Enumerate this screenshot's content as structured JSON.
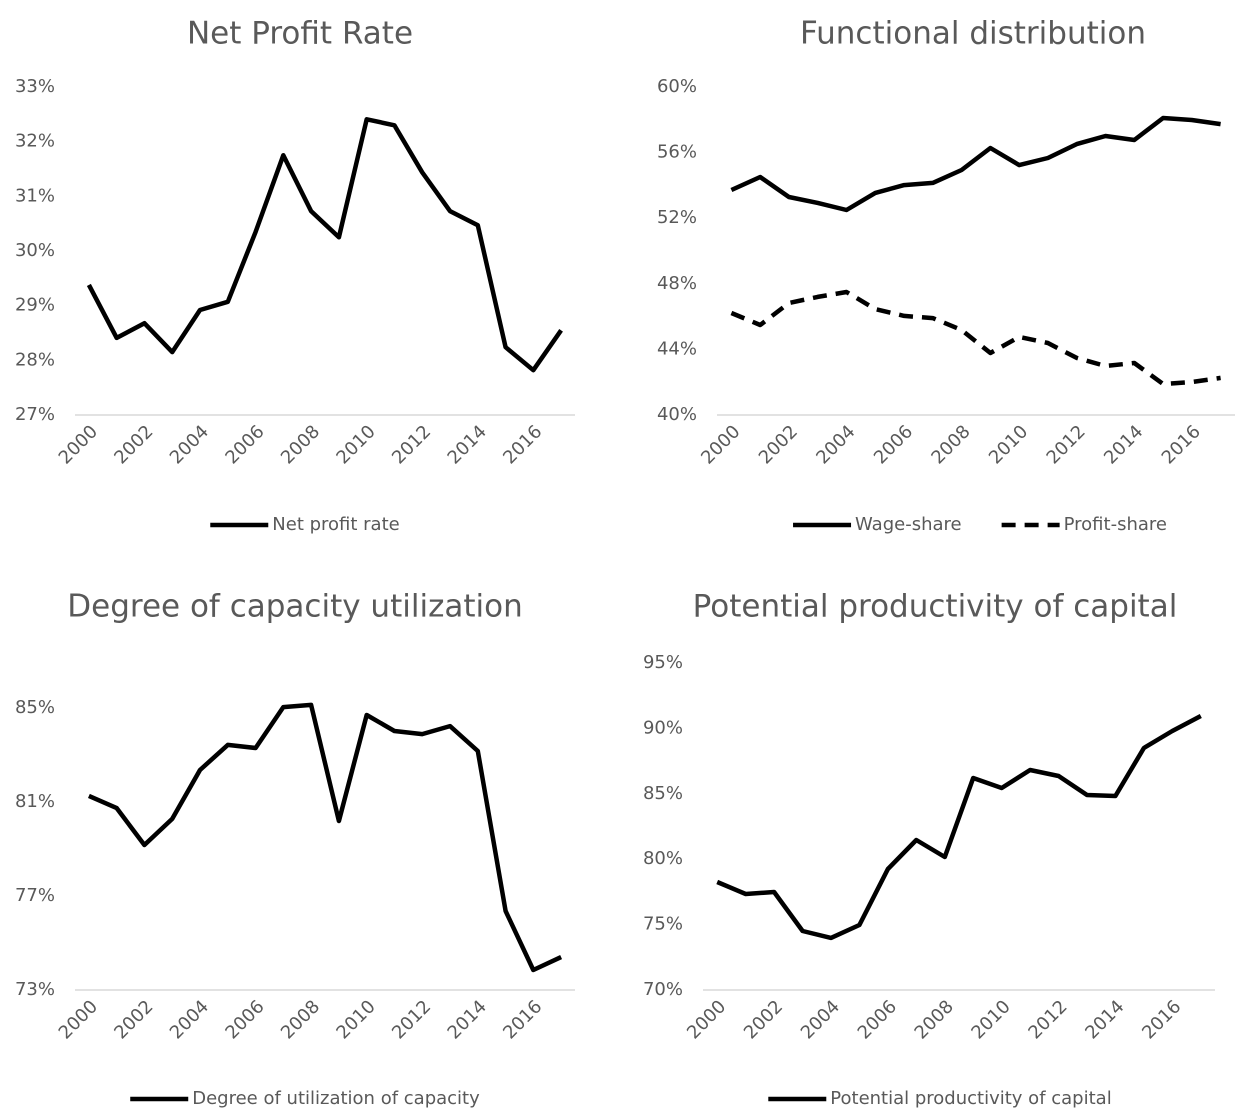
{
  "chart_data": [
    {
      "type": "line",
      "title": "Net Profit Rate",
      "categories": [
        "2000",
        null,
        "2002",
        null,
        "2004",
        null,
        "2006",
        null,
        "2008",
        null,
        "2010",
        null,
        "2012",
        null,
        "2014",
        null,
        "2016",
        null
      ],
      "series": [
        {
          "name": "Net profit rate",
          "color": "#000000",
          "line_style": "solid",
          "values": [
            29.38,
            28.41,
            28.68,
            28.15,
            28.92,
            29.07,
            30.35,
            31.75,
            30.73,
            30.25,
            32.41,
            32.3,
            31.44,
            30.73,
            30.47,
            28.24,
            27.82,
            28.55
          ]
        }
      ],
      "ylim": [
        27,
        33
      ],
      "yticks": [
        {
          "value": 27,
          "label": "27%"
        },
        {
          "value": 28,
          "label": "28%"
        },
        {
          "value": 29,
          "label": "29%"
        },
        {
          "value": 30,
          "label": "30%"
        },
        {
          "value": 31,
          "label": "31%"
        },
        {
          "value": 32,
          "label": "32%"
        },
        {
          "value": 33,
          "label": "33%"
        }
      ],
      "grid": false,
      "legend": "bottom"
    },
    {
      "type": "line",
      "title": "Functional distribution",
      "categories": [
        "2000",
        null,
        "2002",
        null,
        "2004",
        null,
        "2006",
        null,
        "2008",
        null,
        "2010",
        null,
        "2012",
        null,
        "2014",
        null,
        "2016",
        null
      ],
      "series": [
        {
          "name": "Wage-share",
          "color": "#000000",
          "line_style": "solid",
          "values": [
            53.72,
            54.51,
            53.29,
            52.93,
            52.5,
            53.54,
            54.02,
            54.15,
            54.94,
            56.28,
            55.24,
            55.67,
            56.52,
            57.01,
            56.77,
            58.11,
            57.99,
            57.74
          ]
        },
        {
          "name": "Profit-share",
          "color": "#000000",
          "line_style": "dashed",
          "values": [
            46.22,
            45.49,
            46.83,
            47.2,
            47.5,
            46.46,
            46.04,
            45.91,
            45.18,
            43.78,
            44.76,
            44.39,
            43.48,
            42.99,
            43.17,
            41.89,
            42.01,
            42.26
          ]
        }
      ],
      "ylim": [
        40,
        60
      ],
      "yticks": [
        {
          "value": 40,
          "label": "40%"
        },
        {
          "value": 44,
          "label": "44%"
        },
        {
          "value": 48,
          "label": "48%"
        },
        {
          "value": 52,
          "label": "52%"
        },
        {
          "value": 56,
          "label": "56%"
        },
        {
          "value": 60,
          "label": "60%"
        }
      ],
      "grid": false,
      "legend": "bottom"
    },
    {
      "type": "line",
      "title": "Degree of capacity utilization",
      "categories": [
        "2000",
        null,
        "2002",
        null,
        "2004",
        null,
        "2006",
        null,
        "2008",
        null,
        "2010",
        null,
        "2012",
        null,
        "2014",
        null,
        "2016",
        null
      ],
      "series": [
        {
          "name": "Degree of utilization of capacity",
          "color": "#000000",
          "line_style": "solid",
          "values": [
            81.26,
            80.74,
            79.17,
            80.28,
            82.36,
            83.43,
            83.3,
            85.04,
            85.13,
            80.19,
            84.7,
            84.02,
            83.89,
            84.23,
            83.17,
            76.36,
            73.85,
            74.4
          ]
        }
      ],
      "ylim": [
        73,
        86
      ],
      "yticks": [
        {
          "value": 73,
          "label": "73%"
        },
        {
          "value": 77,
          "label": "77%"
        },
        {
          "value": 81,
          "label": "81%"
        },
        {
          "value": 85,
          "label": "85%"
        }
      ],
      "grid": false,
      "legend": "bottom"
    },
    {
      "type": "line",
      "title": "Potential productivity of capital",
      "categories": [
        "2000",
        null,
        "2002",
        null,
        "2004",
        null,
        "2006",
        null,
        "2008",
        null,
        "2010",
        null,
        "2012",
        null,
        "2014",
        null,
        "2016",
        null
      ],
      "series": [
        {
          "name": "Potential productivity of capital",
          "color": "#000000",
          "line_style": "solid",
          "values": [
            78.26,
            77.34,
            77.49,
            74.51,
            73.98,
            74.97,
            79.25,
            81.47,
            80.17,
            86.21,
            85.44,
            86.82,
            86.36,
            84.91,
            84.83,
            88.5,
            89.8,
            90.95
          ]
        }
      ],
      "ylim": [
        70,
        95
      ],
      "yticks": [
        {
          "value": 70,
          "label": "70%"
        },
        {
          "value": 75,
          "label": "75%"
        },
        {
          "value": 80,
          "label": "80%"
        },
        {
          "value": 85,
          "label": "85%"
        },
        {
          "value": 90,
          "label": "90%"
        },
        {
          "value": 95,
          "label": "95%"
        }
      ],
      "grid": false,
      "legend": "bottom"
    }
  ]
}
